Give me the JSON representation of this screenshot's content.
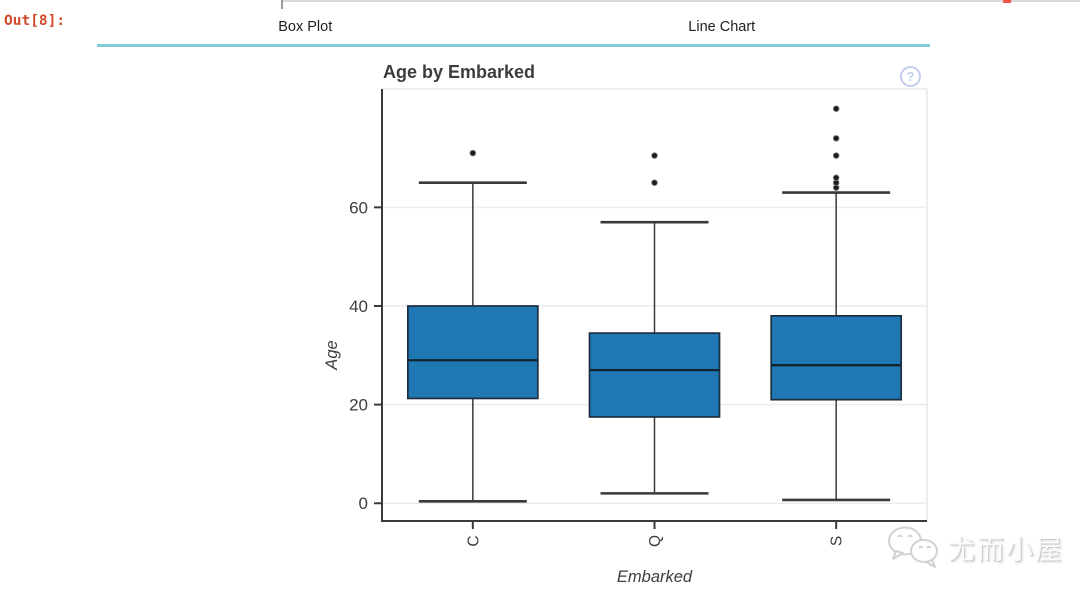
{
  "notebook": {
    "out_prompt": "Out[8]:"
  },
  "tabs": [
    {
      "label": "Box Plot"
    },
    {
      "label": "Line Chart"
    }
  ],
  "help_icon": {
    "glyph": "?"
  },
  "watermark": {
    "text": "尤而小屋",
    "icon": "wechat-chat-bubbles"
  },
  "colors": {
    "out_prompt": "#d2492a",
    "tab_accent": "#82ccd6",
    "top_marker_red": "#ef5350",
    "box_fill": "#1f77b4",
    "box_stroke": "#1d2f3f",
    "median": "#14242f",
    "axis": "#3a3a3a",
    "grid": "#ececec",
    "panel_border": "#e4e4e4",
    "tick_label": "#3d3d3d"
  },
  "chart_data": {
    "type": "boxplot",
    "title": "Age by Embarked",
    "xlabel": "Embarked",
    "ylabel": "Age",
    "categories": [
      "C",
      "Q",
      "S"
    ],
    "yticks": [
      0,
      20,
      40,
      60
    ],
    "ylim": [
      -3.6,
      84
    ],
    "grid": "horizontal",
    "legend": "none",
    "series": [
      {
        "category": "C",
        "whisker_low": 0.4,
        "q1": 21.25,
        "median": 29,
        "q3": 40,
        "whisker_high": 65,
        "outliers": [
          71
        ]
      },
      {
        "category": "Q",
        "whisker_low": 2,
        "q1": 17.5,
        "median": 27,
        "q3": 34.5,
        "whisker_high": 57,
        "outliers": [
          65,
          70.5
        ]
      },
      {
        "category": "S",
        "whisker_low": 0.67,
        "q1": 21,
        "median": 28,
        "q3": 38,
        "whisker_high": 63,
        "outliers": [
          64,
          65,
          66,
          70.5,
          74,
          80
        ]
      }
    ]
  }
}
